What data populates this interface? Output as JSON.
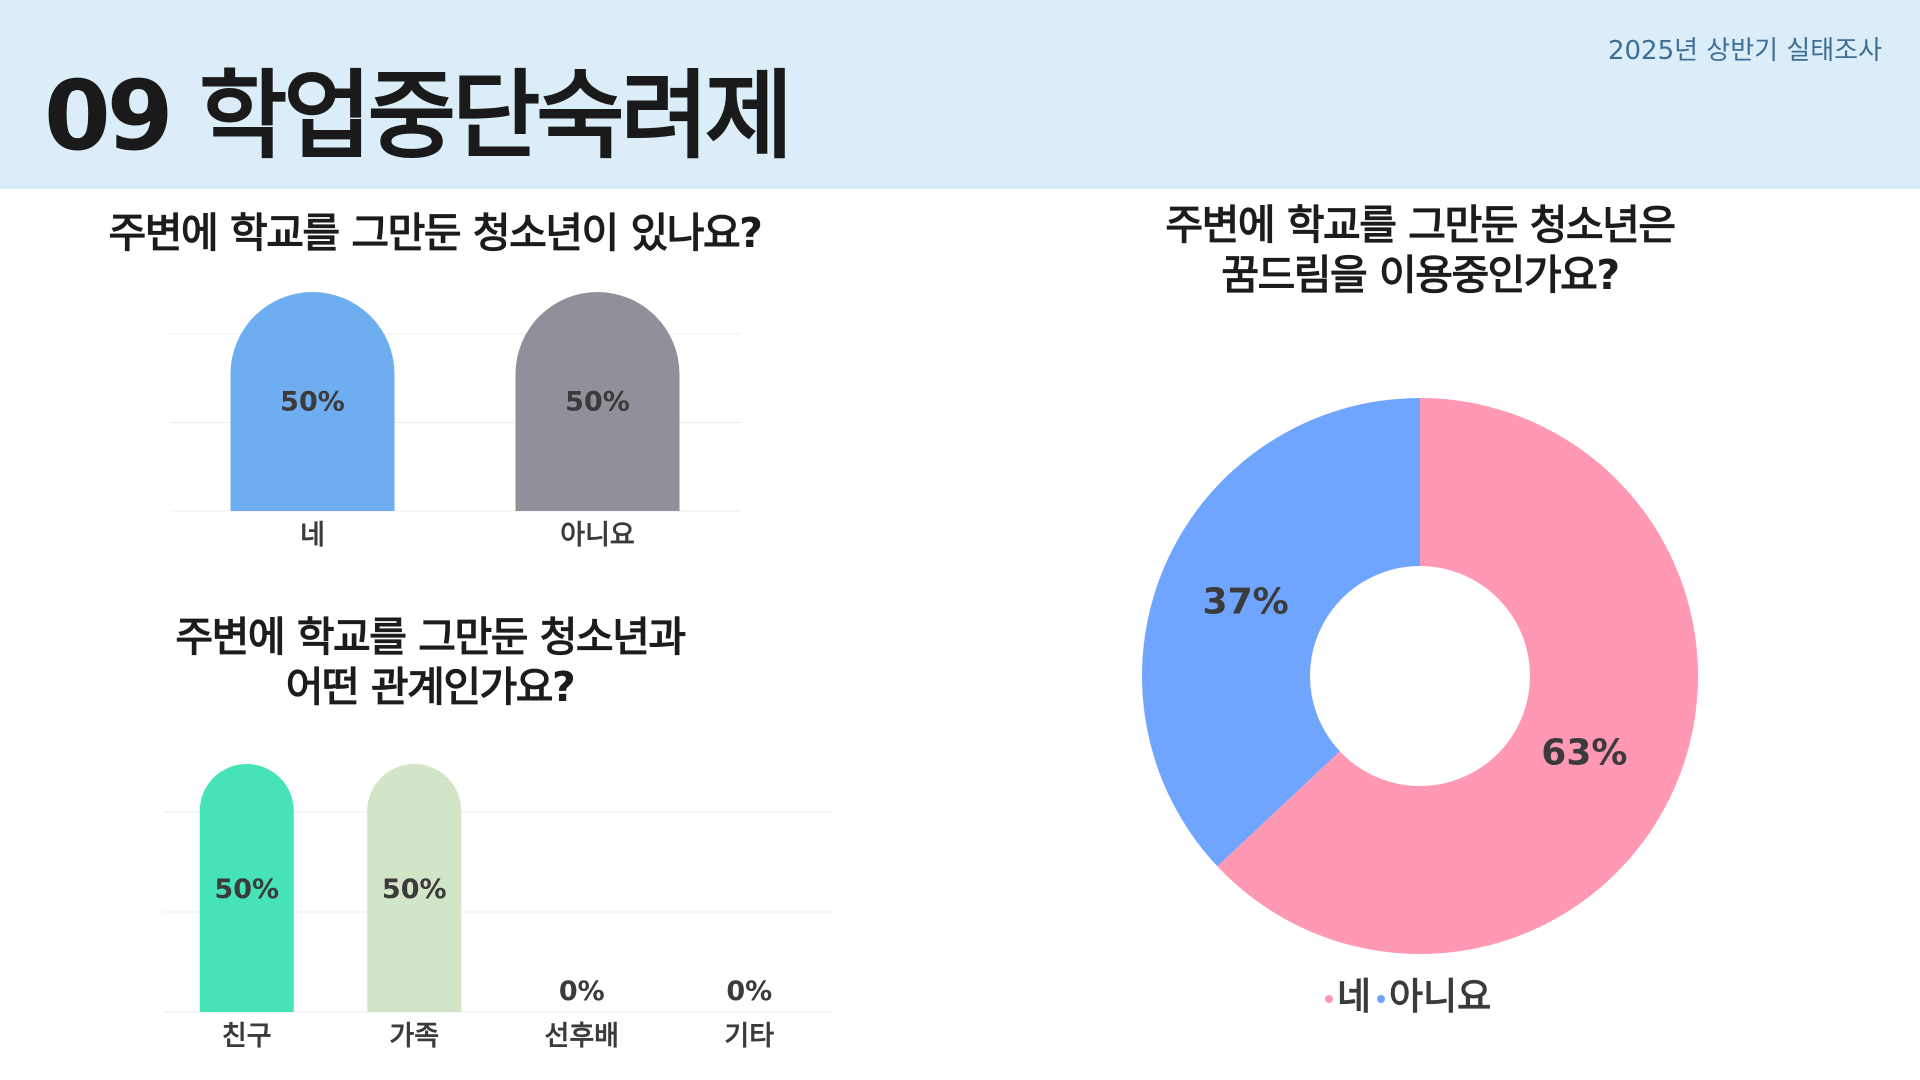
{
  "header": {
    "title": "09 학업중단숙려제",
    "survey_tag": "2025년 상반기 실태조사"
  },
  "q1": {
    "title": "주변에 학교를 그만둔 청소년이 있나요?"
  },
  "q2": {
    "title_line1": "주변에 학교를 그만둔 청소년과",
    "title_line2": "어떤 관계인가요?"
  },
  "q3": {
    "title_line1": "주변에 학교를 그만둔 청소년은",
    "title_line2": "꿈드림을 이용중인가요?"
  },
  "chart_data": [
    {
      "type": "bar",
      "categories": [
        "네",
        "아니요"
      ],
      "values": [
        50,
        50
      ],
      "value_labels": [
        "50%",
        "50%"
      ],
      "colors": [
        "#6eaef0",
        "#918f99"
      ],
      "ylim": [
        0,
        50
      ],
      "grid": true,
      "title": "주변에 학교를 그만둔 청소년이 있나요?"
    },
    {
      "type": "bar",
      "categories": [
        "친구",
        "가족",
        "선후배",
        "기타"
      ],
      "values": [
        50,
        50,
        0,
        0
      ],
      "value_labels": [
        "50%",
        "50%",
        "0%",
        "0%"
      ],
      "colors": [
        "#46e2b8",
        "#d2e5c7",
        "#cccccc",
        "#cccccc"
      ],
      "ylim": [
        0,
        50
      ],
      "grid": true,
      "title": "주변에 학교를 그만둔 청소년과 어떤 관계인가요?"
    },
    {
      "type": "pie",
      "labels": [
        "네",
        "아니요"
      ],
      "values": [
        63,
        37
      ],
      "value_labels": [
        "63%",
        "37%"
      ],
      "colors": [
        "#ff98b2",
        "#6fa5fe"
      ],
      "donut": true,
      "legend": "bottom",
      "title": "주변에 학교를 그만둔 청소년은 꿈드림을 이용중인가요?"
    }
  ]
}
